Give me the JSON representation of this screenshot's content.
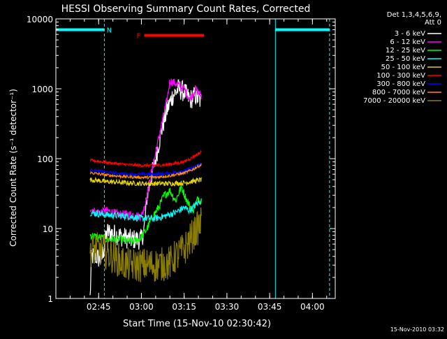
{
  "chart_data": {
    "type": "line",
    "title": "HESSI Observing Summary Count Rates, Corrected",
    "xlabel": "Start Time (15-Nov-10 02:30:42)",
    "ylabel": "Corrected Count Rate (s⁻¹ detector⁻¹)",
    "yscale": "log",
    "ylim": [
      1,
      10000
    ],
    "xlim": [
      "02:30",
      "04:08"
    ],
    "x_ticks": [
      "02:45",
      "03:00",
      "03:15",
      "03:30",
      "03:45",
      "04:00"
    ],
    "y_ticks": [
      "1",
      "10",
      "100",
      "1000",
      "10000"
    ],
    "timestamp": "15-Nov-2010 03:32",
    "legend": {
      "header": [
        "Det 1,3,4,5,6,9,",
        "Att 0"
      ],
      "placement": "top-right outside",
      "entries": [
        {
          "label": "3 - 6 keV",
          "color": "#ffffff"
        },
        {
          "label": "6 - 12 keV",
          "color": "#ff00ff"
        },
        {
          "label": "12 - 25 keV",
          "color": "#00ff00"
        },
        {
          "label": "25 - 50 keV",
          "color": "#00ffff"
        },
        {
          "label": "50 - 100 keV",
          "color": "#e6d200"
        },
        {
          "label": "100 - 300 keV",
          "color": "#ff0000"
        },
        {
          "label": "300 - 800 keV",
          "color": "#0000ff"
        },
        {
          "label": "800 - 7000 keV",
          "color": "#ff8c00"
        },
        {
          "label": "7000 - 20000 keV",
          "color": "#8b7d00"
        }
      ]
    },
    "flags": [
      {
        "label": "N",
        "color": "#00ffff",
        "start": "02:30",
        "end": "02:47",
        "level": 7000
      },
      {
        "label": "",
        "color": "#00ffff",
        "start": "03:47",
        "end": "04:06",
        "level": 7000
      },
      {
        "label": "F",
        "color": "#ff0000",
        "start": "03:01",
        "end": "03:22",
        "level": 5800
      }
    ],
    "boundaries": [
      {
        "time": "02:30",
        "style": "solid",
        "color": "#00ffff"
      },
      {
        "time": "02:47",
        "style": "dashed",
        "color": "#00ffff"
      },
      {
        "time": "03:47",
        "style": "solid",
        "color": "#00ffff"
      },
      {
        "time": "04:06",
        "style": "dashed",
        "color": "#00ffff"
      }
    ],
    "series": [
      {
        "name": "3 - 6 keV",
        "color": "#ffffff",
        "noise": 0.15,
        "points": [
          [
            "02:42",
            1
          ],
          [
            "02:42:30",
            4
          ],
          [
            "02:44",
            4
          ],
          [
            "02:46",
            3.5
          ],
          [
            "02:48",
            9
          ],
          [
            "02:52",
            8
          ],
          [
            "02:56",
            7
          ],
          [
            "03:00",
            7
          ],
          [
            "03:01",
            10
          ],
          [
            "03:02",
            30
          ],
          [
            "03:03",
            45
          ],
          [
            "03:05",
            100
          ],
          [
            "03:07",
            250
          ],
          [
            "03:09",
            500
          ],
          [
            "03:11",
            800
          ],
          [
            "03:13",
            1000
          ],
          [
            "03:15",
            900
          ],
          [
            "03:17",
            700
          ],
          [
            "03:19",
            800
          ],
          [
            "03:21",
            650
          ]
        ]
      },
      {
        "name": "6 - 12 keV",
        "color": "#ff00ff",
        "noise": 0.06,
        "points": [
          [
            "02:42",
            20
          ],
          [
            "02:44",
            17
          ],
          [
            "02:48",
            18
          ],
          [
            "02:52",
            16
          ],
          [
            "02:56",
            16
          ],
          [
            "03:00",
            15
          ],
          [
            "03:01",
            20
          ],
          [
            "03:02",
            30
          ],
          [
            "03:03",
            50
          ],
          [
            "03:05",
            120
          ],
          [
            "03:07",
            300
          ],
          [
            "03:09",
            700
          ],
          [
            "03:10",
            1300
          ],
          [
            "03:12",
            1200
          ],
          [
            "03:15",
            1000
          ],
          [
            "03:17",
            700
          ],
          [
            "03:19",
            1000
          ],
          [
            "03:21",
            780
          ]
        ]
      },
      {
        "name": "12 - 25 keV",
        "color": "#00ff00",
        "noise": 0.06,
        "points": [
          [
            "02:42",
            8
          ],
          [
            "02:48",
            7
          ],
          [
            "02:52",
            7
          ],
          [
            "02:57",
            6.5
          ],
          [
            "03:00",
            7.5
          ],
          [
            "03:02",
            10
          ],
          [
            "03:04",
            15
          ],
          [
            "03:06",
            20
          ],
          [
            "03:08",
            30
          ],
          [
            "03:10",
            35
          ],
          [
            "03:12",
            25
          ],
          [
            "03:14",
            40
          ],
          [
            "03:16",
            25
          ],
          [
            "03:18",
            18
          ],
          [
            "03:20",
            28
          ],
          [
            "03:21",
            24
          ]
        ]
      },
      {
        "name": "25 - 50 keV",
        "color": "#00ffff",
        "noise": 0.05,
        "points": [
          [
            "02:42",
            17
          ],
          [
            "02:46",
            16
          ],
          [
            "02:50",
            15.5
          ],
          [
            "02:55",
            15
          ],
          [
            "03:00",
            14
          ],
          [
            "03:05",
            14
          ],
          [
            "03:08",
            15
          ],
          [
            "03:10",
            16
          ],
          [
            "03:12",
            17
          ],
          [
            "03:15",
            20
          ],
          [
            "03:17",
            18
          ],
          [
            "03:19",
            22
          ],
          [
            "03:21",
            25
          ]
        ]
      },
      {
        "name": "50 - 100 keV",
        "color": "#e6d200",
        "noise": 0.035,
        "points": [
          [
            "02:42",
            50
          ],
          [
            "02:48",
            47
          ],
          [
            "02:55",
            45
          ],
          [
            "03:00",
            44
          ],
          [
            "03:05",
            44
          ],
          [
            "03:10",
            44
          ],
          [
            "03:15",
            45
          ],
          [
            "03:21",
            50
          ]
        ]
      },
      {
        "name": "100 - 300 keV",
        "color": "#ff0000",
        "noise": 0.02,
        "points": [
          [
            "02:42",
            95
          ],
          [
            "02:48",
            88
          ],
          [
            "02:55",
            82
          ],
          [
            "03:00",
            80
          ],
          [
            "03:05",
            80
          ],
          [
            "03:10",
            83
          ],
          [
            "03:15",
            90
          ],
          [
            "03:18",
            105
          ],
          [
            "03:21",
            125
          ]
        ]
      },
      {
        "name": "300 - 800 keV",
        "color": "#0000ff",
        "noise": 0.02,
        "points": [
          [
            "02:42",
            69
          ],
          [
            "02:48",
            64
          ],
          [
            "02:55",
            60
          ],
          [
            "03:00",
            60
          ],
          [
            "03:05",
            60
          ],
          [
            "03:10",
            62
          ],
          [
            "03:15",
            67
          ],
          [
            "03:18",
            75
          ],
          [
            "03:21",
            85
          ]
        ]
      },
      {
        "name": "800 - 7000 keV",
        "color": "#ff8c00",
        "noise": 0.02,
        "points": [
          [
            "02:42",
            63
          ],
          [
            "02:48",
            58
          ],
          [
            "02:55",
            55
          ],
          [
            "03:00",
            54
          ],
          [
            "03:05",
            54
          ],
          [
            "03:10",
            57
          ],
          [
            "03:15",
            62
          ],
          [
            "03:18",
            70
          ],
          [
            "03:21",
            82
          ]
        ]
      },
      {
        "name": "7000 - 20000 keV",
        "color": "#8b7d00",
        "noise": 0.25,
        "points": [
          [
            "02:42",
            5
          ],
          [
            "02:46",
            5
          ],
          [
            "02:50",
            4
          ],
          [
            "02:55",
            3
          ],
          [
            "03:00",
            3
          ],
          [
            "03:05",
            3
          ],
          [
            "03:10",
            3.2
          ],
          [
            "03:12",
            4
          ],
          [
            "03:15",
            5
          ],
          [
            "03:18",
            8
          ],
          [
            "03:21",
            12
          ]
        ]
      }
    ]
  }
}
